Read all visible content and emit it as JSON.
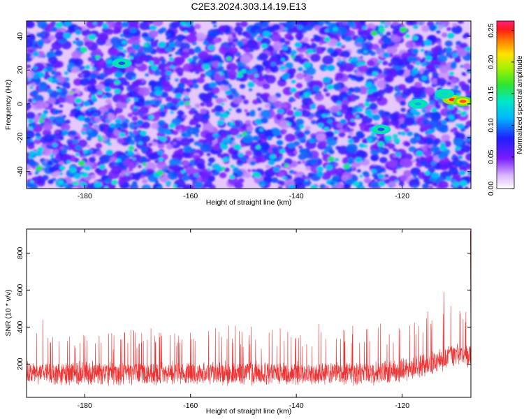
{
  "chart_data": [
    {
      "type": "heatmap",
      "title": "C2E3.2024.303.14.19.E13",
      "xlabel": "Height of straight line (km)",
      "ylabel": "Frequency (Hz)",
      "xlim": [
        -191,
        -107
      ],
      "ylim": [
        -50,
        49
      ],
      "x_ticks": [
        -180,
        -160,
        -140,
        -120
      ],
      "y_ticks": [
        -40,
        -20,
        0,
        20,
        40
      ],
      "colorbar": {
        "label": "Normalized spectral amplitude",
        "range": [
          0.0,
          0.265
        ],
        "ticks": [
          "0.00",
          "0.05",
          "0.10",
          "0.15",
          "0.20",
          "0.25"
        ],
        "colormap": "rainbow (white-violet-blue-cyan-green-yellow-red-magenta)"
      },
      "background_level": 0.04,
      "hotspots": [
        {
          "x": -110.5,
          "y": 2.5,
          "value": 0.25
        },
        {
          "x": -108.5,
          "y": 1.5,
          "value": 0.24
        },
        {
          "x": -112,
          "y": 6,
          "value": 0.13
        },
        {
          "x": -117,
          "y": 0,
          "value": 0.11
        },
        {
          "x": -173,
          "y": 24,
          "value": 0.09
        },
        {
          "x": -124,
          "y": -15,
          "value": 0.09
        }
      ]
    },
    {
      "type": "line",
      "xlabel": "Height of straight line (km)",
      "ylabel": "SNR (10 * v/v)",
      "xlim": [
        -191,
        -107
      ],
      "ylim": [
        20,
        930
      ],
      "x_ticks": [
        -180,
        -160,
        -140,
        -120
      ],
      "y_ticks": [
        200,
        400,
        600,
        800
      ],
      "color": "#ee3333",
      "series": [
        {
          "x": [
            -191,
            -188,
            -186,
            -184,
            -182,
            -180,
            -178,
            -176,
            -174,
            -172,
            -170,
            -168,
            -166,
            -164,
            -162,
            -160,
            -158,
            -156,
            -154,
            -152,
            -150,
            -148,
            -146,
            -144,
            -142,
            -140,
            -138,
            -136,
            -134,
            -132,
            -130,
            -128,
            -126,
            -124,
            -122,
            -120,
            -118,
            -116,
            -114,
            -112,
            -110,
            -108,
            -107
          ],
          "baseline": [
            150,
            155,
            150,
            148,
            150,
            152,
            150,
            148,
            150,
            150,
            152,
            150,
            148,
            150,
            150,
            150,
            152,
            150,
            148,
            150,
            150,
            150,
            152,
            150,
            148,
            150,
            150,
            150,
            152,
            150,
            150,
            148,
            150,
            155,
            160,
            165,
            175,
            190,
            205,
            230,
            250,
            245,
            240
          ],
          "peak": [
            300,
            480,
            350,
            430,
            330,
            420,
            350,
            440,
            360,
            400,
            380,
            420,
            390,
            410,
            370,
            430,
            360,
            400,
            400,
            420,
            380,
            440,
            360,
            420,
            400,
            410,
            390,
            420,
            410,
            440,
            400,
            430,
            420,
            440,
            410,
            430,
            440,
            470,
            520,
            600,
            570,
            480,
            920
          ]
        }
      ]
    }
  ]
}
